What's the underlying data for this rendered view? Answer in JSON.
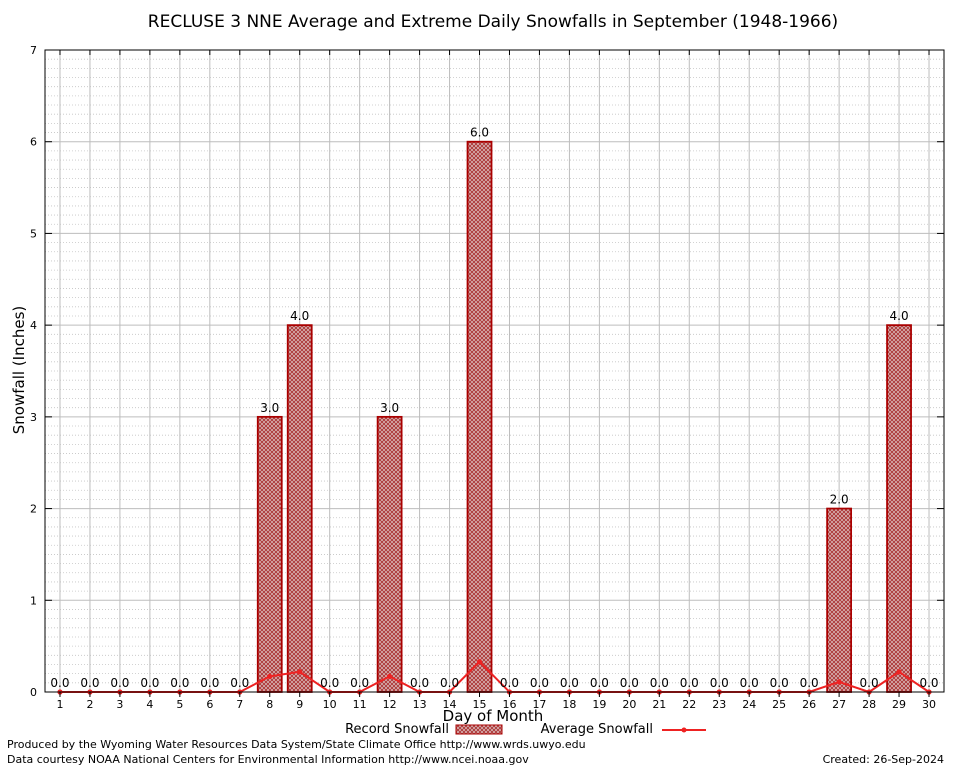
{
  "chart_data": {
    "type": "bar",
    "title": "RECLUSE 3 NNE Average and Extreme Daily Snowfalls in September (1948-1966)",
    "xlabel": "Day of Month",
    "ylabel": "Snowfall (Inches)",
    "ylim": [
      0,
      7
    ],
    "yticks": [
      0,
      1,
      2,
      3,
      4,
      5,
      6,
      7
    ],
    "grid": true,
    "categories": [
      "1",
      "2",
      "3",
      "4",
      "5",
      "6",
      "7",
      "8",
      "9",
      "10",
      "11",
      "12",
      "13",
      "14",
      "15",
      "16",
      "17",
      "18",
      "19",
      "20",
      "21",
      "22",
      "23",
      "24",
      "25",
      "26",
      "27",
      "28",
      "29",
      "30"
    ],
    "series": [
      {
        "name": "Record Snowfall",
        "kind": "bar",
        "values": [
          0,
          0,
          0,
          0,
          0,
          0,
          0,
          3,
          4,
          0,
          0,
          3,
          0,
          0,
          6,
          0,
          0,
          0,
          0,
          0,
          0,
          0,
          0,
          0,
          0,
          0,
          2,
          0,
          4,
          0
        ],
        "labels": [
          "0.0",
          "0.0",
          "0.0",
          "0.0",
          "0.0",
          "0.0",
          "0.0",
          "3.0",
          "4.0",
          "0.0",
          "0.0",
          "3.0",
          "0.0",
          "0.0",
          "6.0",
          "0.0",
          "0.0",
          "0.0",
          "0.0",
          "0.0",
          "0.0",
          "0.0",
          "0.0",
          "0.0",
          "0.0",
          "0.0",
          "2.0",
          "0.0",
          "4.0",
          "0.0"
        ],
        "color": "#aa0000"
      },
      {
        "name": "Average Snowfall",
        "kind": "line",
        "values": [
          0,
          0,
          0,
          0,
          0,
          0,
          0,
          0.17,
          0.22,
          0,
          0,
          0.17,
          0,
          0,
          0.33,
          0,
          0,
          0,
          0,
          0,
          0,
          0,
          0,
          0,
          0,
          0,
          0.11,
          0,
          0.22,
          0
        ],
        "color": "#ee2222"
      }
    ],
    "legend": {
      "placement": "bottom-center"
    }
  },
  "footer": {
    "line1": "Produced by the Wyoming Water Resources Data System/State Climate Office http://www.wrds.uwyo.edu",
    "line2": "Data courtesy NOAA National Centers for Environmental Information http://www.ncei.noaa.gov",
    "created": "Created: 26-Sep-2024"
  }
}
